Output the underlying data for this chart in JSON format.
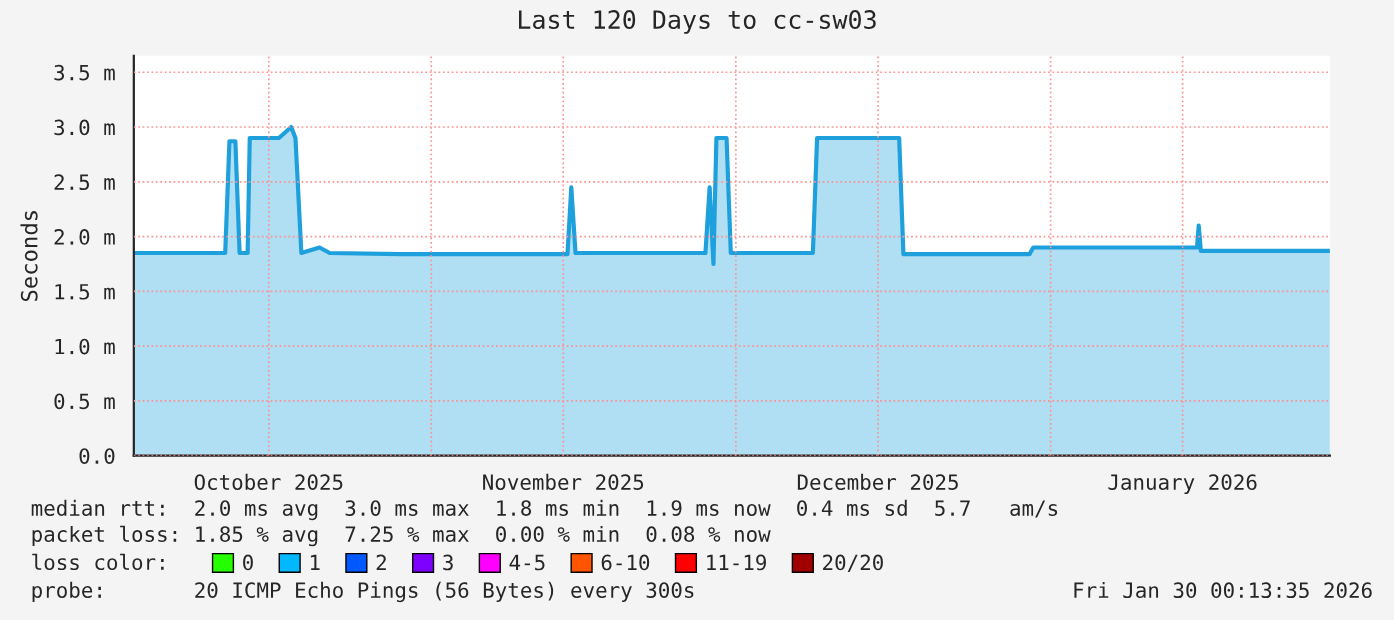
{
  "chart_data": {
    "type": "area",
    "title": "Last 120 Days to cc-sw03",
    "ylabel": "Seconds",
    "xlim": [
      "2025-10-02T17:00",
      "2026-01-28T12:00"
    ],
    "xticks": [
      {
        "value": "2025-10-16",
        "label": "October 2025"
      },
      {
        "value": "2025-11-14",
        "label": "November 2025"
      },
      {
        "value": "2025-12-15",
        "label": "December 2025"
      },
      {
        "value": "2026-01-14",
        "label": "January 2026"
      },
      {
        "value": "2025-11-01",
        "label": null
      },
      {
        "value": "2025-12-01",
        "label": null
      },
      {
        "value": "2026-01-01",
        "label": null
      }
    ],
    "ylim": [
      0,
      3.65
    ],
    "yticks": [
      {
        "value": 0,
        "label": "0.0"
      },
      {
        "value": 0.5,
        "label": "0.5 m"
      },
      {
        "value": 1.0,
        "label": "1.0 m"
      },
      {
        "value": 1.5,
        "label": "1.5 m"
      },
      {
        "value": 2.0,
        "label": "2.0 m"
      },
      {
        "value": 2.5,
        "label": "2.5 m"
      },
      {
        "value": 3.0,
        "label": "3.0 m"
      },
      {
        "value": 3.5,
        "label": "3.5 m"
      }
    ],
    "x": [
      "2025-10-02T17:00",
      "2025-10-11T17:00",
      "2025-10-12T03:00",
      "2025-10-12T17:00",
      "2025-10-13T03:00",
      "2025-10-13T22:00",
      "2025-10-14T03:00",
      "2025-10-17T00:00",
      "2025-10-18T05:00",
      "2025-10-18T15:00",
      "2025-10-19T05:00",
      "2025-10-21T00:00",
      "2025-10-22T00:00",
      "2025-10-28T22:00",
      "2025-11-14T10:00",
      "2025-11-14T19:00",
      "2025-11-15T05:00",
      "2025-11-28T00:00",
      "2025-11-28T10:00",
      "2025-11-28T19:00",
      "2025-11-29T02:00",
      "2025-11-29T07:00",
      "2025-11-30T02:00",
      "2025-11-30T12:00",
      "2025-12-08T14:00",
      "2025-12-09T00:00",
      "2025-12-17T02:00",
      "2025-12-17T12:00",
      "2025-12-29T22:00",
      "2025-12-30T07:00",
      "2026-01-15T10:00",
      "2026-01-15T14:00",
      "2026-01-15T19:00",
      "2026-01-28T12:00"
    ],
    "series": [
      {
        "color": "#1ea0dc",
        "values": [
          1.85,
          1.85,
          2.87,
          2.87,
          1.85,
          1.85,
          2.9,
          2.9,
          3.0,
          2.9,
          1.85,
          1.9,
          1.85,
          1.84,
          1.84,
          2.45,
          1.85,
          1.85,
          2.45,
          1.75,
          2.9,
          2.9,
          2.9,
          1.85,
          1.85,
          2.9,
          2.9,
          1.84,
          1.84,
          1.9,
          1.9,
          2.1,
          1.87,
          1.87
        ]
      },
      {
        "name": "0",
        "color": "#26ff00",
        "values": [
          null,
          null,
          null,
          null,
          null,
          null,
          null,
          null,
          null,
          null,
          null,
          null,
          null,
          null,
          null,
          null,
          null,
          null,
          null,
          null,
          null,
          null,
          null,
          null,
          null,
          null,
          null,
          null,
          null,
          null,
          null,
          null,
          null,
          null
        ]
      },
      {
        "name": "1",
        "color": "#00b8ff",
        "values": [
          null,
          null,
          null,
          null,
          null,
          null,
          null,
          null,
          null,
          null,
          null,
          null,
          null,
          null,
          null,
          null,
          null,
          null,
          null,
          null,
          null,
          null,
          null,
          null,
          null,
          null,
          null,
          null,
          null,
          null,
          null,
          null,
          null,
          null
        ]
      },
      {
        "name": "2",
        "color": "#0059ff",
        "values": [
          null,
          null,
          null,
          null,
          null,
          null,
          null,
          null,
          null,
          null,
          null,
          null,
          null,
          null,
          null,
          null,
          null,
          null,
          null,
          null,
          null,
          null,
          null,
          null,
          null,
          null,
          null,
          null,
          null,
          null,
          null,
          null,
          null,
          null
        ]
      },
      {
        "name": "3",
        "color": "#7e00ff",
        "values": [
          null,
          null,
          null,
          null,
          null,
          null,
          null,
          null,
          null,
          null,
          null,
          null,
          null,
          null,
          null,
          null,
          null,
          null,
          null,
          null,
          null,
          null,
          null,
          null,
          null,
          null,
          null,
          null,
          null,
          null,
          null,
          null,
          null,
          null
        ]
      },
      {
        "name": "4-5",
        "color": "#ff00ff",
        "values": [
          null,
          null,
          null,
          null,
          null,
          null,
          null,
          null,
          null,
          null,
          null,
          null,
          null,
          null,
          null,
          null,
          null,
          null,
          null,
          null,
          null,
          null,
          null,
          null,
          null,
          null,
          null,
          null,
          null,
          null,
          null,
          null,
          null,
          null
        ]
      },
      {
        "name": "6-10",
        "color": "#ff5500",
        "values": [
          null,
          null,
          null,
          null,
          null,
          null,
          null,
          null,
          null,
          null,
          null,
          null,
          null,
          null,
          null,
          null,
          null,
          null,
          null,
          null,
          null,
          null,
          null,
          null,
          null,
          null,
          null,
          null,
          null,
          null,
          null,
          null,
          null,
          null
        ]
      },
      {
        "name": "11-19",
        "color": "#ff0000",
        "values": [
          null,
          null,
          null,
          null,
          null,
          null,
          null,
          null,
          null,
          null,
          null,
          null,
          null,
          null,
          null,
          null,
          null,
          null,
          null,
          null,
          null,
          null,
          null,
          null,
          null,
          null,
          null,
          null,
          null,
          null,
          null,
          null,
          null,
          null
        ]
      },
      {
        "name": "20/20",
        "color": "#a10000",
        "values": [
          null,
          null,
          null,
          null,
          null,
          null,
          null,
          null,
          null,
          null,
          null,
          null,
          null,
          null,
          null,
          null,
          null,
          null,
          null,
          null,
          null,
          null,
          null,
          null,
          null,
          null,
          null,
          null,
          null,
          null,
          null,
          null,
          null,
          null
        ]
      }
    ],
    "legend": "bottom",
    "legend_title": "loss color:",
    "grid": true,
    "annotations": [
      "median rtt:  2.0 ms avg  3.0 ms max  1.8 ms min  1.9 ms now  0.4 ms sd  5.7   am/s",
      "packet loss: 1.85 % avg  7.25 % max  0.00 % min  0.08 % now",
      "probe:       20 ICMP Echo Pings (56 Bytes) every 300s",
      "Fri Jan 30 00:13:35 2026"
    ]
  }
}
